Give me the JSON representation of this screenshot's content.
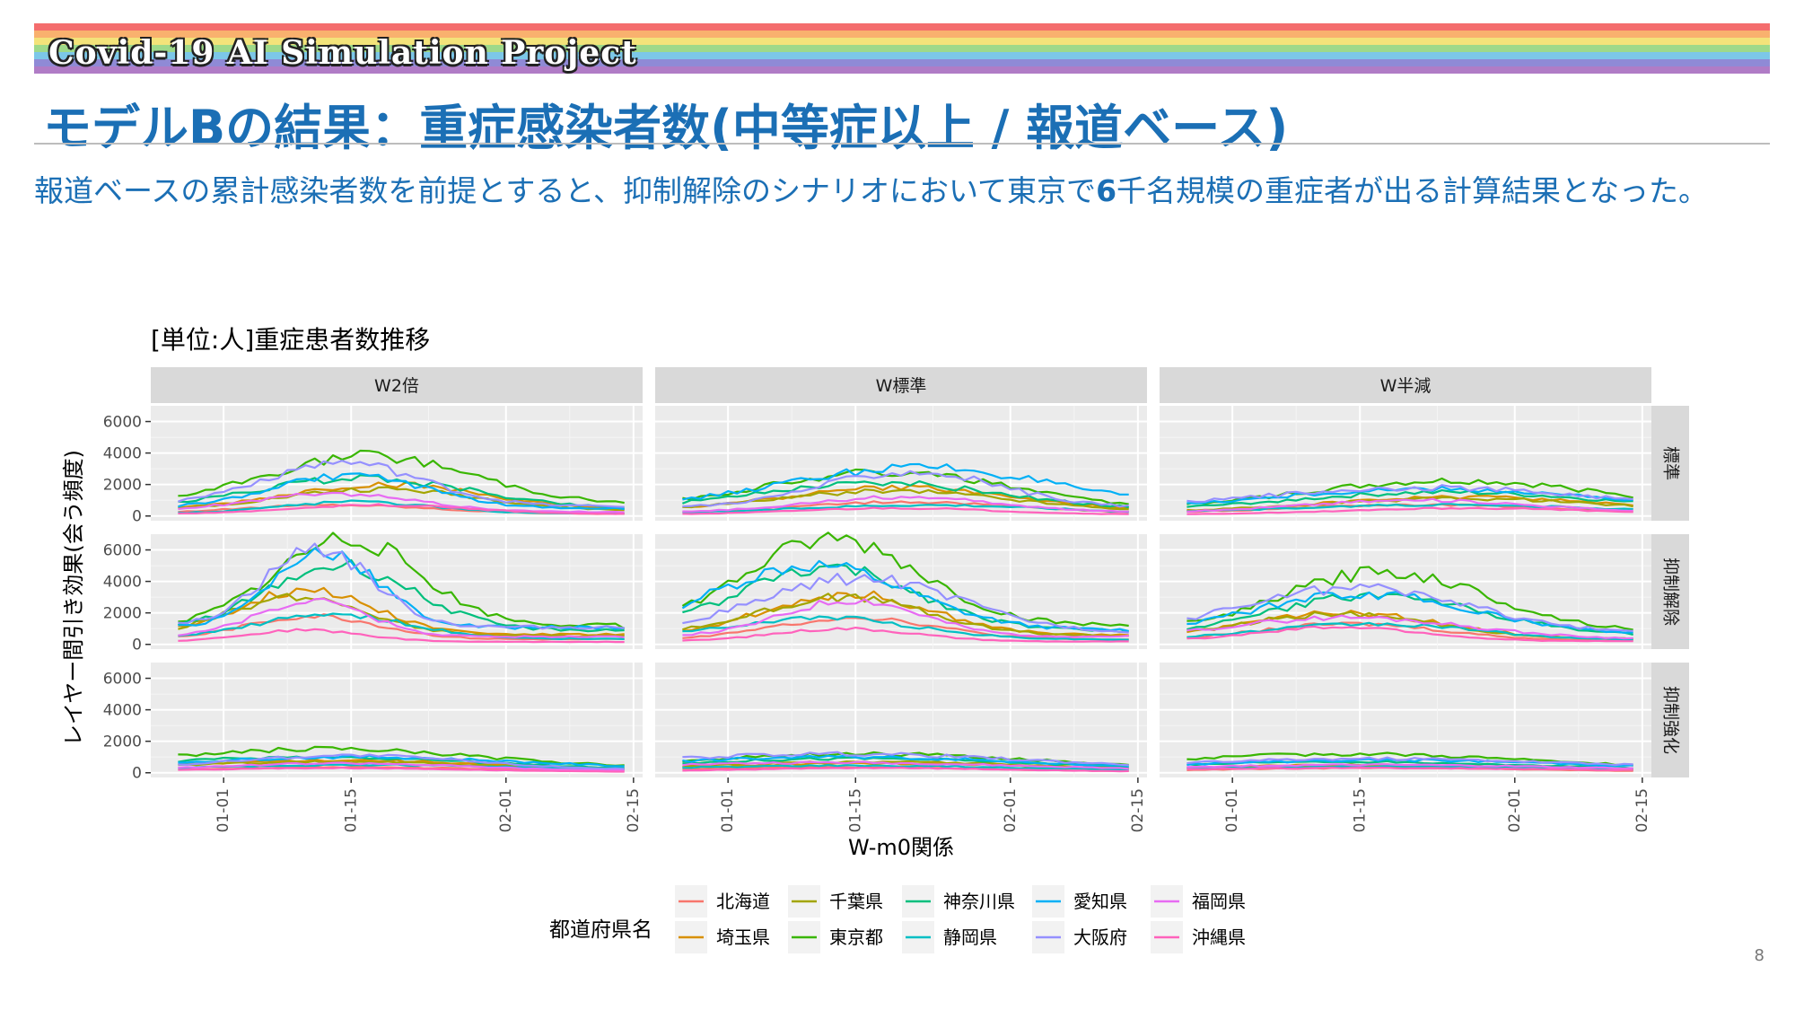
{
  "header": {
    "brand": "Covid-19 AI Simulation Project",
    "title": "モデルBの結果：重症感染者数(中等症以上 / 報道ベース)",
    "subtitle_before": "報道ベースの累計感染者数を前提とすると、抑制解除のシナリオにおいて東京で",
    "subtitle_strong": "6",
    "subtitle_after": "千名規模の重症者が出る計算結果となった。",
    "rainbow_colors": [
      "#f46d6d",
      "#f9b16e",
      "#f3e37a",
      "#9ed98a",
      "#7cc7e8",
      "#8f8ad6",
      "#b07cc6"
    ]
  },
  "page_number": "8",
  "chart_data": {
    "type": "line",
    "title": "[単位:人]重症患者数推移",
    "xlabel": "W-m0関係",
    "ylabel": "レイヤー間引き効果(会う頻度)",
    "columns": [
      "W2倍",
      "W標準",
      "W半減"
    ],
    "rows": [
      "標準",
      "抑制解除",
      "抑制強化"
    ],
    "x_ticks": [
      "01-01",
      "01-15",
      "02-01",
      "02-15"
    ],
    "x_range": [
      "2020-12-24",
      "2021-02-16"
    ],
    "x_start": "2020-12-27",
    "x_end": "2021-02-14",
    "ylim": [
      -300,
      7000
    ],
    "y_ticks": [
      0,
      2000,
      4000,
      6000
    ],
    "legend_title": "都道府県名",
    "legend_position": "bottom",
    "series": [
      {
        "name": "北海道",
        "color": "#F8766D",
        "peak": [
          [
            700,
            900,
            700
          ],
          [
            1800,
            1700,
            1300
          ],
          [
            350,
            350,
            300
          ]
        ]
      },
      {
        "name": "埼玉県",
        "color": "#D89000",
        "peak": [
          [
            2000,
            1800,
            1200
          ],
          [
            3500,
            3200,
            2000
          ],
          [
            800,
            600,
            500
          ]
        ]
      },
      {
        "name": "千葉県",
        "color": "#A3A500",
        "peak": [
          [
            1700,
            1600,
            1100
          ],
          [
            3000,
            3000,
            1900
          ],
          [
            700,
            700,
            450
          ]
        ]
      },
      {
        "name": "東京都",
        "color": "#39B600",
        "peak": [
          [
            3800,
            2800,
            2200
          ],
          [
            6700,
            6700,
            4600
          ],
          [
            1500,
            1200,
            1200
          ]
        ]
      },
      {
        "name": "神奈川県",
        "color": "#00BF7D",
        "peak": [
          [
            2400,
            2100,
            1500
          ],
          [
            5000,
            4800,
            3100
          ],
          [
            1000,
            900,
            700
          ]
        ]
      },
      {
        "name": "静岡県",
        "color": "#00BFC4",
        "peak": [
          [
            900,
            700,
            700
          ],
          [
            1900,
            1700,
            1300
          ],
          [
            500,
            450,
            400
          ]
        ]
      },
      {
        "name": "愛知県",
        "color": "#00B0F6",
        "peak": [
          [
            2600,
            3100,
            1700
          ],
          [
            6000,
            5000,
            3200
          ],
          [
            1000,
            1000,
            800
          ]
        ]
      },
      {
        "name": "大阪府",
        "color": "#9590FF",
        "peak": [
          [
            3400,
            2800,
            1800
          ],
          [
            6100,
            4200,
            3600
          ],
          [
            1100,
            1200,
            900
          ]
        ]
      },
      {
        "name": "福岡県",
        "color": "#E76BF3",
        "peak": [
          [
            1400,
            1200,
            1000
          ],
          [
            2700,
            2800,
            1700
          ],
          [
            600,
            650,
            500
          ]
        ]
      },
      {
        "name": "沖縄県",
        "color": "#FF62BC",
        "peak": [
          [
            700,
            500,
            500
          ],
          [
            900,
            1000,
            1100
          ],
          [
            300,
            300,
            300
          ]
        ]
      }
    ]
  }
}
